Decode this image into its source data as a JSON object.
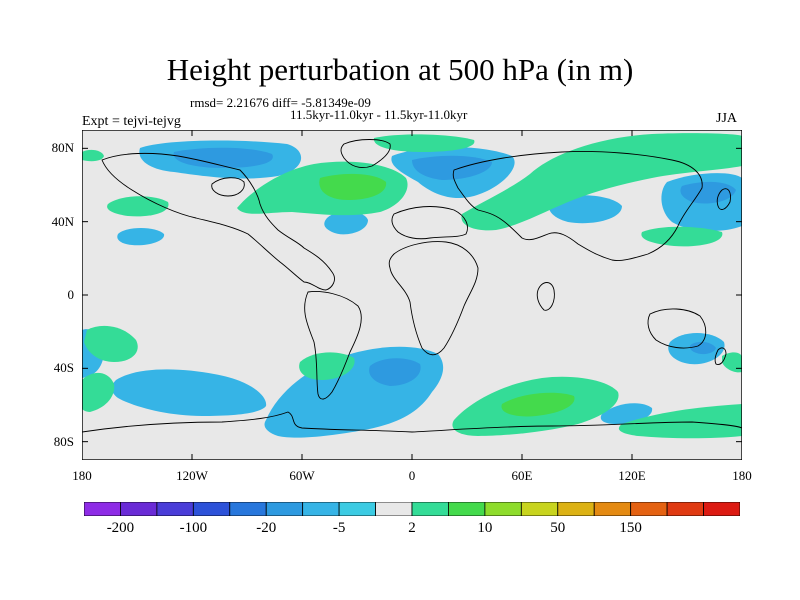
{
  "title": "Height perturbation at 500 hPa (in m)",
  "stats": "rmsd= 2.21676 diff= -5.81349e-09",
  "subtitle": "11.5kyr-11.0kyr - 11.5kyr-11.0kyr",
  "left_label": "Expt = tejvi-tejvg",
  "right_label": "JJA",
  "map": {
    "projection": "cylindrical equidistant",
    "lon_range": [
      -180,
      180
    ],
    "lat_range": [
      -90,
      90
    ],
    "background_color": "#e8e8e8",
    "coastline_color": "#000000",
    "lat_ticks": [
      {
        "label": "80N",
        "value": 80
      },
      {
        "label": "40N",
        "value": 40
      },
      {
        "label": "0",
        "value": 0
      },
      {
        "label": "40S",
        "value": -40
      },
      {
        "label": "80S",
        "value": -80
      }
    ],
    "lon_ticks": [
      {
        "label": "180",
        "value": -180
      },
      {
        "label": "120W",
        "value": -120
      },
      {
        "label": "60W",
        "value": -60
      },
      {
        "label": "0",
        "value": 0
      },
      {
        "label": "60E",
        "value": 60
      },
      {
        "label": "120E",
        "value": 120
      },
      {
        "label": "180",
        "value": 180
      }
    ]
  },
  "colorbar": {
    "colors": [
      "#8e2ce6",
      "#6a2bd6",
      "#4a3dd8",
      "#2d52d9",
      "#2877dc",
      "#2e9ae0",
      "#36b4e6",
      "#3ccbe3",
      "#e8e8e8",
      "#34dc97",
      "#44da4c",
      "#8edc2c",
      "#c8d41e",
      "#dcb214",
      "#e48a12",
      "#e46212",
      "#e03a12",
      "#dc1a12"
    ],
    "labels": [
      {
        "text": "-200",
        "boundary": 1
      },
      {
        "text": "-100",
        "boundary": 3
      },
      {
        "text": "-20",
        "boundary": 5
      },
      {
        "text": "-5",
        "boundary": 7
      },
      {
        "text": "2",
        "boundary": 9
      },
      {
        "text": "10",
        "boundary": 11
      },
      {
        "text": "50",
        "boundary": 13
      },
      {
        "text": "150",
        "boundary": 15
      }
    ]
  }
}
